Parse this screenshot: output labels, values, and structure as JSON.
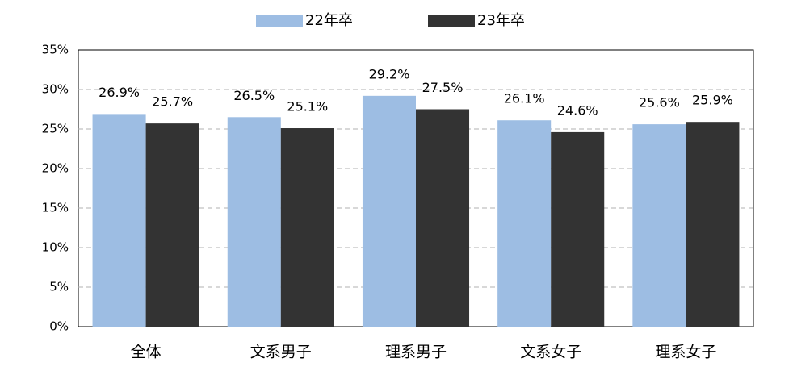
{
  "chart_data": {
    "type": "bar",
    "categories": [
      "全体",
      "文系男子",
      "理系男子",
      "文系女子",
      "理系女子"
    ],
    "series": [
      {
        "name": "22年卒",
        "color": "#9dbde3",
        "values": [
          26.9,
          26.5,
          29.2,
          26.1,
          25.6
        ],
        "value_labels": [
          "26.9%",
          "26.5%",
          "29.2%",
          "26.1%",
          "25.6%"
        ]
      },
      {
        "name": "23年卒",
        "color": "#333333",
        "values": [
          25.7,
          25.1,
          27.5,
          24.6,
          25.9
        ],
        "value_labels": [
          "25.7%",
          "25.1%",
          "27.5%",
          "24.6%",
          "25.9%"
        ]
      }
    ],
    "ylim": [
      0,
      35
    ],
    "yticks": [
      {
        "value": 0,
        "label": "0%"
      },
      {
        "value": 5,
        "label": "5%"
      },
      {
        "value": 10,
        "label": "10%"
      },
      {
        "value": 15,
        "label": "15%"
      },
      {
        "value": 20,
        "label": "20%"
      },
      {
        "value": 25,
        "label": "25%"
      },
      {
        "value": 30,
        "label": "30%"
      },
      {
        "value": 35,
        "label": "35%"
      }
    ],
    "grid": true,
    "legend": "top"
  }
}
